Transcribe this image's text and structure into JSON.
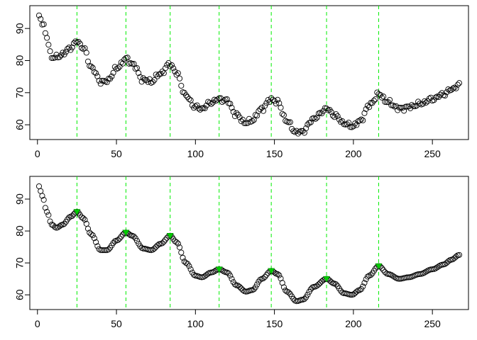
{
  "colors": {
    "background": "#ffffff",
    "points": "#000000",
    "vlines": "#00ee00",
    "peak_markers": "#00cc00"
  },
  "chart_data": [
    {
      "type": "scatter",
      "title": "",
      "xlabel": "",
      "ylabel": "",
      "xlim": [
        1,
        267
      ],
      "ylim": [
        56.5,
        96
      ],
      "x_ticks": [
        0,
        50,
        100,
        150,
        200,
        250
      ],
      "y_ticks": [
        60,
        70,
        80,
        90
      ],
      "grid": false,
      "vlines": [
        25,
        56,
        84,
        115,
        148,
        183,
        216
      ],
      "noise": true,
      "series": [
        {
          "n": 267,
          "description_points": "raw signal, open circles"
        }
      ],
      "key_points": [
        [
          1,
          94
        ],
        [
          3,
          92
        ],
        [
          6,
          87
        ],
        [
          9,
          81
        ],
        [
          12,
          81
        ],
        [
          16,
          82
        ],
        [
          21,
          84
        ],
        [
          25,
          86
        ],
        [
          29,
          84
        ],
        [
          34,
          78
        ],
        [
          40,
          73.5
        ],
        [
          44,
          73.5
        ],
        [
          50,
          77.5
        ],
        [
          56,
          80.5
        ],
        [
          60,
          79
        ],
        [
          67,
          74
        ],
        [
          72,
          73.5
        ],
        [
          78,
          76
        ],
        [
          84,
          79
        ],
        [
          88,
          76
        ],
        [
          94,
          69
        ],
        [
          100,
          65.5
        ],
        [
          104,
          65
        ],
        [
          110,
          67
        ],
        [
          115,
          68
        ],
        [
          120,
          67.5
        ],
        [
          126,
          63
        ],
        [
          132,
          60.5
        ],
        [
          136,
          61.5
        ],
        [
          142,
          65
        ],
        [
          148,
          68
        ],
        [
          152,
          67
        ],
        [
          158,
          61
        ],
        [
          164,
          57.5
        ],
        [
          168,
          58
        ],
        [
          175,
          62
        ],
        [
          183,
          65
        ],
        [
          188,
          63
        ],
        [
          194,
          60.5
        ],
        [
          199,
          59.5
        ],
        [
          204,
          61
        ],
        [
          210,
          66
        ],
        [
          216,
          69.5
        ],
        [
          222,
          67
        ],
        [
          229,
          65
        ],
        [
          235,
          65.5
        ],
        [
          242,
          66.5
        ],
        [
          250,
          68
        ],
        [
          257,
          69.5
        ],
        [
          262,
          71
        ],
        [
          267,
          72.5
        ]
      ]
    },
    {
      "type": "scatter",
      "title": "",
      "xlabel": "",
      "ylabel": "",
      "xlim": [
        1,
        267
      ],
      "ylim": [
        56.5,
        96
      ],
      "x_ticks": [
        0,
        50,
        100,
        150,
        200,
        250
      ],
      "y_ticks": [
        60,
        70,
        80,
        90
      ],
      "grid": false,
      "vlines": [
        25,
        56,
        84,
        115,
        148,
        183,
        216
      ],
      "noise": false,
      "series": [
        {
          "n": 267,
          "description_points": "smoothed signal, open circles"
        }
      ],
      "peaks": [
        [
          25,
          86
        ],
        [
          56,
          79.5
        ],
        [
          84,
          78.5
        ],
        [
          115,
          68
        ],
        [
          148,
          67.5
        ],
        [
          183,
          65
        ],
        [
          216,
          69
        ]
      ],
      "key_points": [
        [
          1,
          94
        ],
        [
          3,
          91
        ],
        [
          6,
          86
        ],
        [
          9,
          82
        ],
        [
          12,
          81
        ],
        [
          16,
          82
        ],
        [
          21,
          84.5
        ],
        [
          25,
          86
        ],
        [
          29,
          84
        ],
        [
          34,
          79
        ],
        [
          40,
          74
        ],
        [
          44,
          74
        ],
        [
          50,
          77
        ],
        [
          56,
          79.5
        ],
        [
          60,
          78.5
        ],
        [
          67,
          74.5
        ],
        [
          72,
          74
        ],
        [
          78,
          76
        ],
        [
          84,
          78.5
        ],
        [
          88,
          76.5
        ],
        [
          94,
          70
        ],
        [
          100,
          66
        ],
        [
          104,
          65.5
        ],
        [
          110,
          67
        ],
        [
          115,
          68
        ],
        [
          120,
          67
        ],
        [
          126,
          63
        ],
        [
          132,
          61
        ],
        [
          136,
          61.5
        ],
        [
          142,
          65
        ],
        [
          148,
          67.5
        ],
        [
          152,
          66.5
        ],
        [
          158,
          61
        ],
        [
          164,
          58
        ],
        [
          168,
          58.5
        ],
        [
          175,
          62.5
        ],
        [
          183,
          65
        ],
        [
          188,
          63.5
        ],
        [
          194,
          60.5
        ],
        [
          199,
          60
        ],
        [
          204,
          61.5
        ],
        [
          210,
          66
        ],
        [
          216,
          69
        ],
        [
          222,
          66.5
        ],
        [
          229,
          65
        ],
        [
          235,
          65.5
        ],
        [
          242,
          66.5
        ],
        [
          250,
          68
        ],
        [
          257,
          69.5
        ],
        [
          262,
          71
        ],
        [
          267,
          72.5
        ]
      ]
    }
  ]
}
